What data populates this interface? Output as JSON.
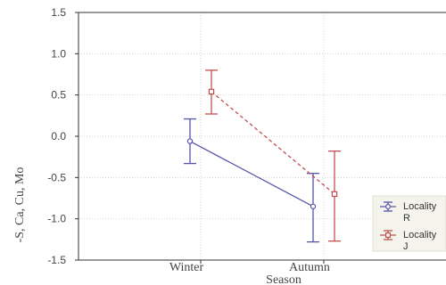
{
  "chart_data": {
    "type": "line",
    "xlabel": "Season",
    "ylabel": "-S, Ca, Cu, Mo",
    "categories": [
      "Winter",
      "Autumn"
    ],
    "ylim": [
      -1.5,
      1.5
    ],
    "yticks": [
      "1.5",
      "1.0",
      "0.5",
      "0.0",
      "-0.5",
      "-1.0",
      "-1.5"
    ],
    "grid": true,
    "legend_position": "bottom-right",
    "series": [
      {
        "name": "Locality R",
        "legend_lines": [
          "Locality",
          "R"
        ],
        "color": "#5555aa",
        "marker": "circle",
        "line_style": "solid",
        "values": [
          -0.06,
          -0.85
        ],
        "error_low": [
          -0.33,
          -1.28
        ],
        "error_high": [
          0.21,
          -0.45
        ]
      },
      {
        "name": "Locality J",
        "legend_lines": [
          "Locality",
          "J"
        ],
        "color": "#c05050",
        "marker": "square",
        "line_style": "dashed",
        "values": [
          0.54,
          -0.7
        ],
        "error_low": [
          0.27,
          -1.27
        ],
        "error_high": [
          0.8,
          -0.18
        ]
      }
    ]
  }
}
